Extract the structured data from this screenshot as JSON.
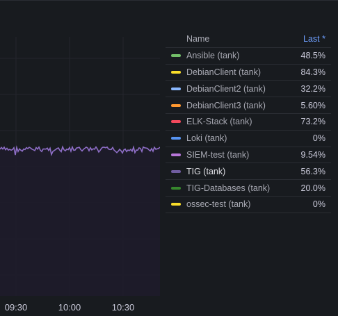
{
  "chart_data": {
    "type": "line",
    "x_ticks": [
      "09:30",
      "10:00",
      "10:30"
    ],
    "series": [
      {
        "name": "TIG (tank)",
        "color": "#8f6fc8",
        "approx_level": 56.3
      }
    ]
  },
  "legend": {
    "header": {
      "name": "Name",
      "last": "Last *"
    },
    "rows": [
      {
        "name": "Ansible (tank)",
        "value": "48.5%",
        "color": "#73bf69"
      },
      {
        "name": "DebianClient (tank)",
        "value": "84.3%",
        "color": "#fade2a"
      },
      {
        "name": "DebianClient2 (tank)",
        "value": "32.2%",
        "color": "#8ab8ff"
      },
      {
        "name": "DebianClient3 (tank)",
        "value": "5.60%",
        "color": "#ff9830"
      },
      {
        "name": "ELK-Stack (tank)",
        "value": "73.2%",
        "color": "#f2495c"
      },
      {
        "name": "Loki (tank)",
        "value": "0%",
        "color": "#5794f2"
      },
      {
        "name": "SIEM-test (tank)",
        "value": "9.54%",
        "color": "#b877d9"
      },
      {
        "name": "TIG (tank)",
        "value": "56.3%",
        "color": "#705da0",
        "active": true
      },
      {
        "name": "TIG-Databases (tank)",
        "value": "20.0%",
        "color": "#37872d"
      },
      {
        "name": "ossec-test (tank)",
        "value": "0%",
        "color": "#fade2a"
      }
    ]
  }
}
